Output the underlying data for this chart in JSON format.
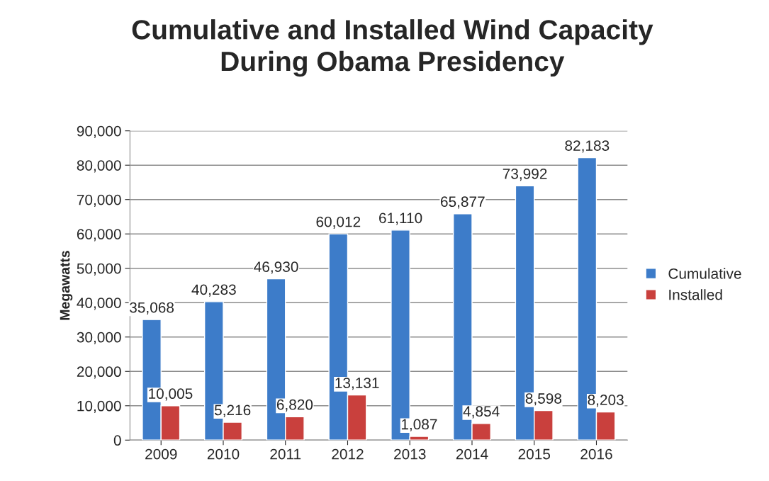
{
  "chart_data": {
    "type": "bar",
    "title": "Cumulative and Installed Wind Capacity\nDuring Obama Presidency",
    "ylabel": "Megawatts",
    "categories": [
      "2009",
      "2010",
      "2011",
      "2012",
      "2013",
      "2014",
      "2015",
      "2016"
    ],
    "series": [
      {
        "name": "Cumulative",
        "color": "#3d7cc9",
        "values": [
          35068,
          40283,
          46930,
          60012,
          61110,
          65877,
          73992,
          82183
        ],
        "value_labels": [
          "35,068",
          "40,283",
          "46,930",
          "60,012",
          "61,110",
          "65,877",
          "73,992",
          "82,183"
        ]
      },
      {
        "name": "Installed",
        "color": "#c9403d",
        "values": [
          10005,
          5216,
          6820,
          13131,
          1087,
          4854,
          8598,
          8203
        ],
        "value_labels": [
          "10,005",
          "5,216",
          "6,820",
          "13,131",
          "1,087",
          "4,854",
          "8,598",
          "8,203"
        ]
      }
    ],
    "ylim": [
      0,
      90000
    ],
    "yticks": [
      {
        "value": 0,
        "label": "0"
      },
      {
        "value": 10000,
        "label": "10,000"
      },
      {
        "value": 20000,
        "label": "20,000"
      },
      {
        "value": 30000,
        "label": "30,000"
      },
      {
        "value": 40000,
        "label": "40,000"
      },
      {
        "value": 50000,
        "label": "50,000"
      },
      {
        "value": 60000,
        "label": "60,000"
      },
      {
        "value": 70000,
        "label": "70,000"
      },
      {
        "value": 80000,
        "label": "80,000"
      },
      {
        "value": 90000,
        "label": "90,000"
      }
    ],
    "grid": "y",
    "legend": "right"
  }
}
